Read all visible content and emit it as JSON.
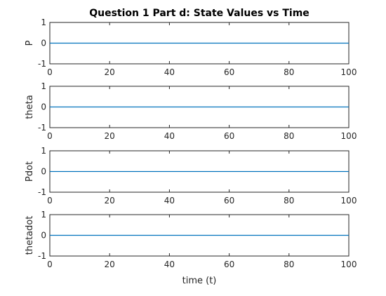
{
  "chart_data": {
    "type": "line",
    "title": "Question 1 Part d: State Values vs Time",
    "xlabel": "time (t)",
    "xlim": [
      0,
      100
    ],
    "xticks": [
      0,
      20,
      40,
      60,
      80,
      100
    ],
    "grid": false,
    "line_color": "#0072BD",
    "subplots": [
      {
        "ylabel": "P",
        "ylim": [
          -1,
          1
        ],
        "yticks": [
          -1,
          0,
          1
        ],
        "series": [
          {
            "x": [
              0,
              100
            ],
            "y": [
              0,
              0
            ]
          }
        ]
      },
      {
        "ylabel": "theta",
        "ylim": [
          -1,
          1
        ],
        "yticks": [
          -1,
          0,
          1
        ],
        "series": [
          {
            "x": [
              0,
              100
            ],
            "y": [
              0,
              0
            ]
          }
        ]
      },
      {
        "ylabel": "Pdot",
        "ylim": [
          -1,
          1
        ],
        "yticks": [
          -1,
          0,
          1
        ],
        "series": [
          {
            "x": [
              0,
              100
            ],
            "y": [
              0,
              0
            ]
          }
        ]
      },
      {
        "ylabel": "thetadot",
        "ylim": [
          -1,
          1
        ],
        "yticks": [
          -1,
          0,
          1
        ],
        "series": [
          {
            "x": [
              0,
              100
            ],
            "y": [
              0,
              0
            ]
          }
        ]
      }
    ]
  }
}
